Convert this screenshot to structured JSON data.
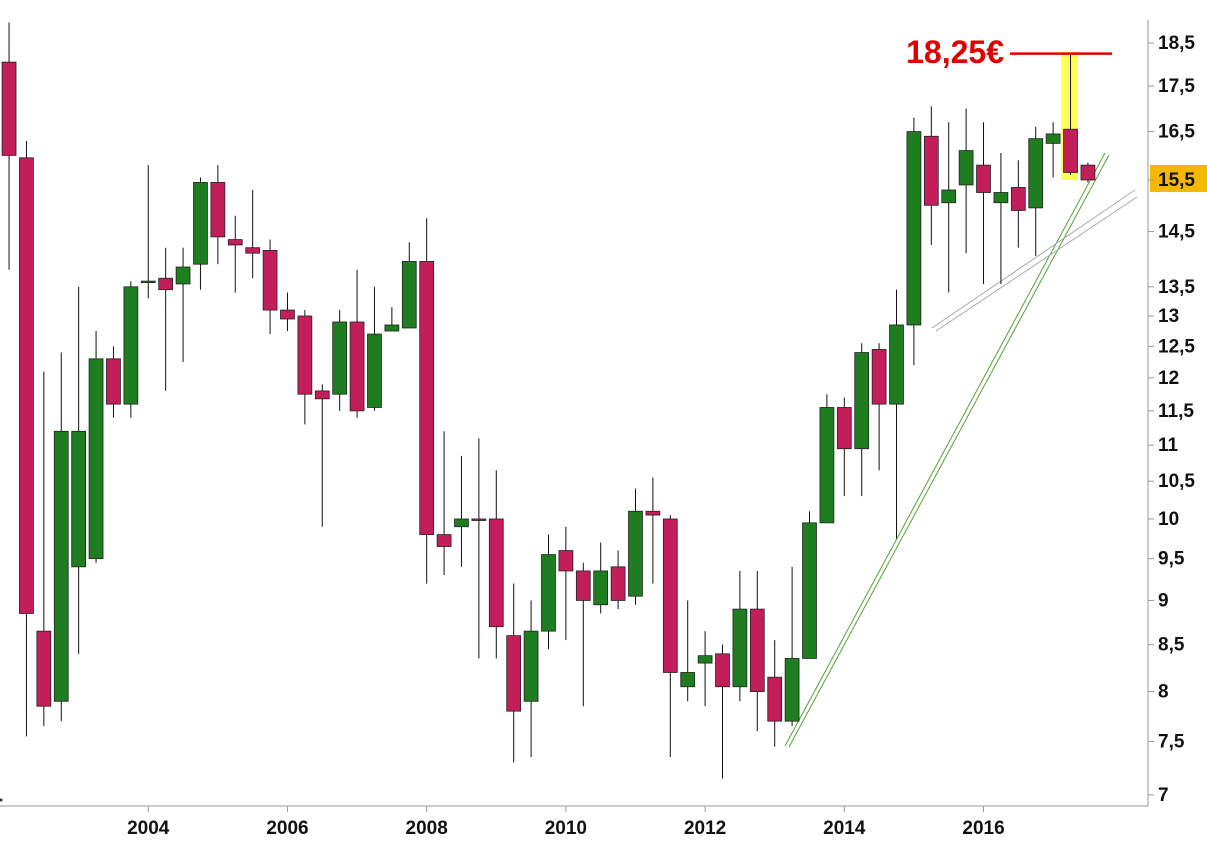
{
  "chart_data": {
    "type": "candlestick",
    "x": [
      2002,
      2002.25,
      2002.5,
      2002.75,
      2003,
      2003.25,
      2003.5,
      2003.75,
      2004,
      2004.25,
      2004.5,
      2004.75,
      2005,
      2005.25,
      2005.5,
      2005.75,
      2006,
      2006.25,
      2006.5,
      2006.75,
      2007,
      2007.25,
      2007.5,
      2007.75,
      2008,
      2008.25,
      2008.5,
      2008.75,
      2009,
      2009.25,
      2009.5,
      2009.75,
      2010,
      2010.25,
      2010.5,
      2010.75,
      2011,
      2011.25,
      2011.5,
      2011.75,
      2012,
      2012.25,
      2012.5,
      2012.75,
      2013,
      2013.25,
      2013.5,
      2013.75,
      2014,
      2014.25,
      2014.5,
      2014.75,
      2015,
      2015.25,
      2015.5,
      2015.75,
      2016,
      2016.25,
      2016.5,
      2016.75,
      2017,
      2017.25,
      2017.5
    ],
    "open": [
      18.05,
      15.95,
      8.65,
      7.9,
      9.4,
      9.5,
      12.3,
      11.6,
      13.6,
      13.65,
      13.55,
      13.9,
      15.45,
      14.35,
      14.2,
      14.15,
      13.1,
      13.0,
      11.8,
      11.75,
      12.9,
      11.55,
      12.75,
      12.8,
      13.95,
      9.8,
      9.9,
      10.0,
      10.0,
      8.6,
      7.9,
      8.65,
      9.6,
      9.35,
      8.95,
      9.4,
      9.05,
      10.1,
      10.0,
      8.05,
      8.3,
      8.4,
      8.05,
      8.9,
      8.15,
      7.7,
      8.35,
      9.95,
      11.55,
      10.95,
      12.45,
      11.6,
      12.85,
      16.4,
      15.05,
      15.4,
      15.8,
      15.05,
      15.35,
      14.95,
      16.25,
      16.55,
      15.8
    ],
    "high": [
      19.0,
      16.3,
      12.1,
      12.4,
      13.5,
      12.75,
      12.5,
      13.6,
      15.8,
      14.2,
      14.2,
      15.55,
      15.8,
      14.8,
      15.3,
      14.35,
      13.4,
      13.1,
      11.9,
      13.1,
      13.8,
      13.5,
      13.15,
      14.3,
      14.75,
      11.2,
      10.85,
      11.1,
      10.65,
      9.2,
      9.0,
      9.8,
      9.9,
      9.45,
      9.7,
      9.6,
      10.4,
      10.55,
      10.05,
      9.0,
      8.65,
      8.5,
      9.35,
      9.35,
      8.55,
      9.4,
      10.1,
      11.75,
      11.7,
      12.55,
      12.55,
      13.45,
      16.8,
      17.05,
      16.7,
      17.0,
      16.7,
      16.05,
      15.9,
      16.6,
      16.7,
      18.25,
      15.85
    ],
    "low": [
      13.8,
      7.55,
      7.65,
      7.7,
      8.4,
      9.45,
      11.4,
      11.4,
      13.3,
      11.8,
      12.25,
      13.45,
      13.9,
      13.4,
      13.65,
      12.7,
      12.75,
      11.3,
      9.9,
      11.5,
      11.4,
      11.5,
      12.75,
      12.8,
      9.2,
      9.3,
      9.4,
      8.35,
      8.35,
      7.3,
      7.35,
      8.45,
      8.55,
      7.85,
      8.85,
      8.9,
      8.95,
      9.2,
      7.35,
      7.9,
      7.85,
      7.15,
      7.9,
      7.6,
      7.45,
      7.65,
      8.35,
      9.95,
      10.3,
      10.3,
      10.65,
      9.75,
      12.2,
      14.25,
      13.4,
      14.1,
      13.55,
      13.55,
      14.2,
      14.05,
      15.55,
      15.6,
      15.45
    ],
    "close": [
      16.0,
      8.85,
      7.85,
      11.2,
      11.2,
      12.3,
      11.6,
      13.5,
      13.6,
      13.45,
      13.85,
      15.45,
      14.4,
      14.25,
      14.1,
      13.1,
      12.95,
      11.75,
      11.68,
      12.9,
      11.5,
      12.7,
      12.85,
      13.95,
      9.8,
      9.65,
      10.0,
      9.98,
      8.7,
      7.8,
      8.65,
      9.55,
      9.35,
      9.0,
      9.35,
      9.0,
      10.1,
      10.05,
      8.2,
      8.2,
      8.38,
      8.05,
      8.9,
      8.0,
      7.7,
      8.35,
      9.95,
      11.55,
      10.95,
      12.4,
      11.6,
      12.85,
      16.5,
      15.0,
      15.3,
      16.1,
      15.25,
      15.25,
      14.9,
      16.35,
      16.45,
      15.65,
      15.5
    ],
    "up_color": "#1e7d1e",
    "down_color": "#c41e5a",
    "xlim": [
      2001.87,
      2018.32
    ],
    "xticks": [
      2004,
      2006,
      2008,
      2010,
      2012,
      2014,
      2016
    ],
    "ylim": [
      6.9,
      19.06
    ],
    "log_scale": true,
    "yticks": [
      {
        "value": 18.5,
        "label": "18,5"
      },
      {
        "value": 17.5,
        "label": "17,5"
      },
      {
        "value": 16.5,
        "label": "16,5"
      },
      {
        "value": 15.5,
        "label": "15,5"
      },
      {
        "value": 14.5,
        "label": "14,5"
      },
      {
        "value": 13.5,
        "label": "13,5"
      },
      13,
      {
        "value": 12.5,
        "label": "12,5"
      },
      12,
      {
        "value": 11.5,
        "label": "11,5"
      },
      11,
      {
        "value": 10.5,
        "label": "10,5"
      },
      10,
      {
        "value": 9.5,
        "label": "9,5"
      },
      9,
      {
        "value": 8.5,
        "label": "8,5"
      },
      8,
      {
        "value": 7.5,
        "label": "7,5"
      },
      7
    ],
    "annotation": {
      "text": "18,25€",
      "value": 18.25,
      "color": "#e00000"
    }
  }
}
